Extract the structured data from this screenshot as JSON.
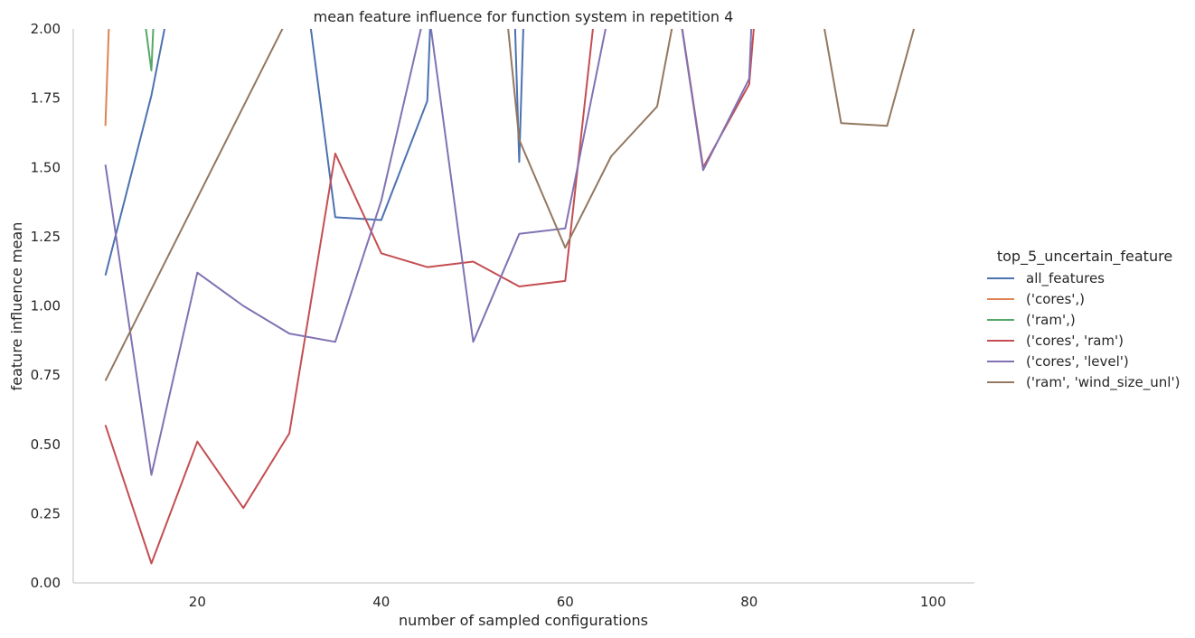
{
  "chart_data": {
    "type": "line",
    "title": "mean feature influence for function system in repetition 4",
    "xlabel": "number of sampled configurations",
    "ylabel": "feature influence mean",
    "xlim": [
      6.5,
      104.5
    ],
    "ylim": [
      0.0,
      2.0
    ],
    "xticks": [
      20,
      40,
      60,
      80,
      100
    ],
    "yticks": [
      0.0,
      0.25,
      0.5,
      0.75,
      1.0,
      1.25,
      1.5,
      1.75,
      2.0
    ],
    "xtick_labels": [
      "20",
      "40",
      "60",
      "80",
      "100"
    ],
    "ytick_labels": [
      "0.00",
      "0.25",
      "0.50",
      "0.75",
      "1.00",
      "1.25",
      "1.50",
      "1.75",
      "2.00"
    ],
    "grid": false,
    "legend": {
      "title": "top_5_uncertain_feature",
      "placement": "right"
    },
    "series": [
      {
        "name": "all_features",
        "color": "#4c72b0",
        "points": [
          [
            10,
            1.11
          ],
          [
            15,
            1.76
          ],
          [
            20,
            2.6
          ],
          [
            30,
            2.6
          ],
          [
            35,
            1.32
          ],
          [
            40,
            1.31
          ],
          [
            45,
            1.74
          ],
          [
            46,
            2.6
          ],
          [
            54,
            2.6
          ],
          [
            55,
            1.52
          ],
          [
            56,
            2.6
          ]
        ]
      },
      {
        "name": "('cores',)",
        "color": "#dd8452",
        "points": [
          [
            10,
            1.65
          ],
          [
            11,
            2.6
          ]
        ]
      },
      {
        "name": "('ram',)",
        "color": "#55a868",
        "points": [
          [
            12,
            2.6
          ],
          [
            15,
            1.85
          ],
          [
            16,
            2.6
          ]
        ]
      },
      {
        "name": "('cores', 'ram')",
        "color": "#c44e52",
        "points": [
          [
            10,
            0.57
          ],
          [
            15,
            0.07
          ],
          [
            20,
            0.51
          ],
          [
            25,
            0.27
          ],
          [
            30,
            0.54
          ],
          [
            35,
            1.55
          ],
          [
            40,
            1.19
          ],
          [
            45,
            1.14
          ],
          [
            50,
            1.16
          ],
          [
            55,
            1.07
          ],
          [
            60,
            1.09
          ],
          [
            65,
            2.6
          ],
          [
            70,
            2.6
          ],
          [
            75,
            1.5
          ],
          [
            80,
            1.8
          ],
          [
            82,
            2.6
          ]
        ]
      },
      {
        "name": "('cores', 'level')",
        "color": "#8172b3",
        "points": [
          [
            10,
            1.51
          ],
          [
            15,
            0.39
          ],
          [
            20,
            1.12
          ],
          [
            25,
            1.0
          ],
          [
            30,
            0.9
          ],
          [
            35,
            0.87
          ],
          [
            40,
            1.38
          ],
          [
            45,
            2.1
          ],
          [
            50,
            0.87
          ],
          [
            55,
            1.26
          ],
          [
            60,
            1.28
          ],
          [
            65,
            2.1
          ],
          [
            70,
            2.6
          ],
          [
            75,
            1.49
          ],
          [
            80,
            1.82
          ],
          [
            81,
            2.6
          ]
        ]
      },
      {
        "name": "('ram', 'wind_size_unl')",
        "color": "#937860",
        "points": [
          [
            10,
            0.73
          ],
          [
            30,
            2.05
          ],
          [
            31,
            2.6
          ],
          [
            52,
            2.6
          ],
          [
            55,
            1.6
          ],
          [
            60,
            1.21
          ],
          [
            65,
            1.54
          ],
          [
            70,
            1.72
          ],
          [
            75,
            2.6
          ],
          [
            85,
            2.6
          ],
          [
            90,
            1.66
          ],
          [
            95,
            1.65
          ],
          [
            100,
            2.25
          ]
        ]
      }
    ]
  }
}
